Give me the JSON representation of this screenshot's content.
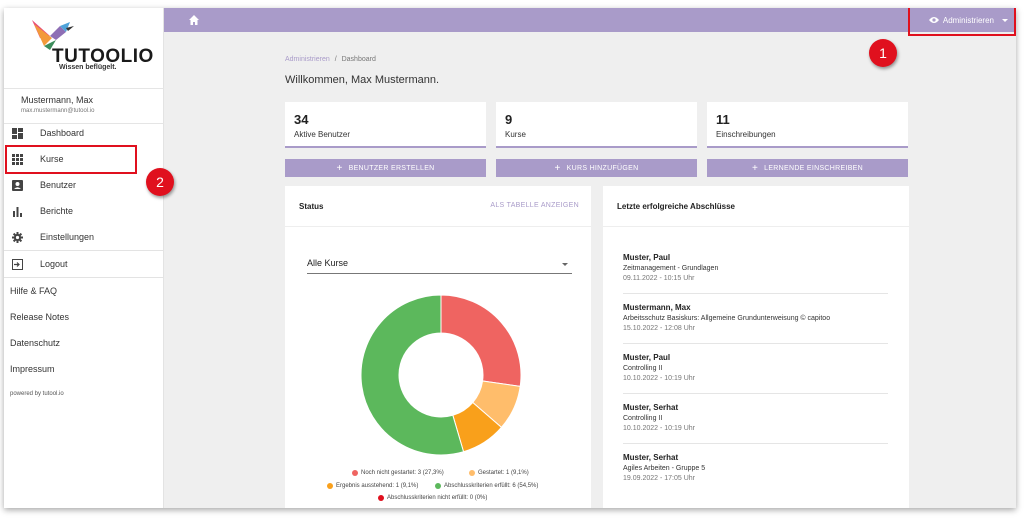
{
  "colors": {
    "accent": "#a99bc9",
    "annotation": "#e0101e"
  },
  "logo": {
    "text": "TUTOOLIO",
    "tagline": "Wissen beflügelt."
  },
  "user": {
    "name": "Mustermann, Max",
    "email": "max.mustermann@tutool.io"
  },
  "sidebar": {
    "items": [
      {
        "label": "Dashboard",
        "icon": "dashboard-icon"
      },
      {
        "label": "Kurse",
        "icon": "apps-grid-icon"
      },
      {
        "label": "Benutzer",
        "icon": "person-card-icon"
      },
      {
        "label": "Berichte",
        "icon": "bar-chart-icon"
      },
      {
        "label": "Einstellungen",
        "icon": "gear-icon"
      },
      {
        "label": "Logout",
        "icon": "logout-icon"
      }
    ],
    "links": [
      "Hilfe & FAQ",
      "Release Notes",
      "Datenschutz",
      "Impressum"
    ],
    "powered": "powered by tutool.io"
  },
  "topbar": {
    "admin_label": "Administrieren"
  },
  "annotations": {
    "badge1": "1",
    "badge2": "2"
  },
  "breadcrumb": {
    "root": "Administrieren",
    "separator": "/",
    "current": "Dashboard"
  },
  "welcome": "Willkommen, Max Mustermann.",
  "stats": [
    {
      "value": "34",
      "label": "Aktive Benutzer"
    },
    {
      "value": "9",
      "label": "Kurse"
    },
    {
      "value": "11",
      "label": "Einschreibungen"
    }
  ],
  "actions": [
    "BENUTZER ERSTELLEN",
    "KURS HINZUFÜGEN",
    "LERNENDE EINSCHREIBEN"
  ],
  "status_panel": {
    "title": "Status",
    "table_link": "ALS TABELLE ANZEIGEN",
    "select_value": "Alle Kurse"
  },
  "chart_data": {
    "type": "pie",
    "donut": true,
    "categories": [
      "Noch nicht gestartet",
      "Gestartet",
      "Ergebnis ausstehend",
      "Abschlusskriterien erfüllt",
      "Abschlusskriterien nicht erfüllt"
    ],
    "values": [
      3,
      1,
      1,
      6,
      0
    ],
    "colors": [
      "#ef6461",
      "#ffbd6b",
      "#f9a01b",
      "#5cb85c",
      "#e0101e"
    ],
    "legend": [
      "Noch nicht gestartet: 3 (27,3%)",
      "Gestartet: 1 (9,1%)",
      "Ergebnis ausstehend: 1 (9,1%)",
      "Abschlusskriterien erfüllt: 6 (54,5%)",
      "Abschlusskriterien nicht erfüllt: 0 (0%)"
    ],
    "legend_position": "bottom"
  },
  "recent_panel": {
    "title": "Letzte erfolgreiche Abschlüsse",
    "entries": [
      {
        "name": "Muster, Paul",
        "course": "Zeitmanagement - Grundlagen",
        "date": "09.11.2022 - 10:15 Uhr"
      },
      {
        "name": "Mustermann, Max",
        "course": "Arbeitsschutz Basiskurs: Allgemeine Grundunterweisung © capitoo",
        "date": "15.10.2022 - 12:08 Uhr"
      },
      {
        "name": "Muster, Paul",
        "course": "Controlling II",
        "date": "10.10.2022 - 10:19 Uhr"
      },
      {
        "name": "Muster, Serhat",
        "course": "Controlling II",
        "date": "10.10.2022 - 10:19 Uhr"
      },
      {
        "name": "Muster, Serhat",
        "course": "Agiles Arbeiten - Gruppe 5",
        "date": "19.09.2022 - 17:05 Uhr"
      }
    ]
  }
}
